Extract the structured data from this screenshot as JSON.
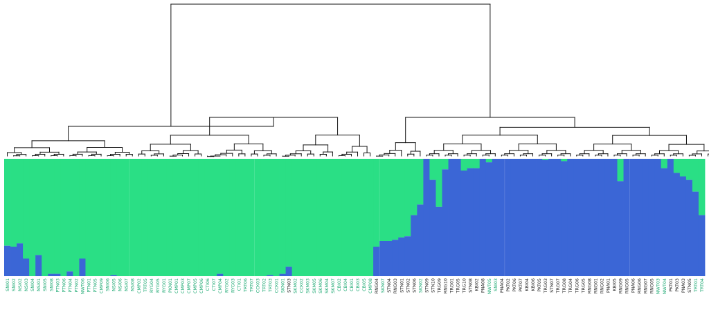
{
  "figure": {
    "colors": {
      "cluster_1": "#2adf85",
      "cluster_2": "#3b66d6",
      "tree": "#111111",
      "label_green": "#1aa870",
      "label_dark": "#222222",
      "divider": "#ffffff"
    },
    "panel_groups": [
      20,
      40,
      60,
      80,
      100,
      120
    ],
    "samples": [
      {
        "label": "SNI01",
        "color": "green",
        "blue": 0.26
      },
      {
        "label": "SNI02",
        "color": "green",
        "blue": 0.25
      },
      {
        "label": "NSI02",
        "color": "green",
        "blue": 0.28
      },
      {
        "label": "NSI03",
        "color": "green",
        "blue": 0.15
      },
      {
        "label": "SNI04",
        "color": "green",
        "blue": 0.0
      },
      {
        "label": "NSI01",
        "color": "green",
        "blue": 0.18
      },
      {
        "label": "SNI05",
        "color": "green",
        "blue": 0.0
      },
      {
        "label": "SNI08",
        "color": "green",
        "blue": 0.02
      },
      {
        "label": "PTN03",
        "color": "green",
        "blue": 0.02
      },
      {
        "label": "PTN06",
        "color": "green",
        "blue": 0.0
      },
      {
        "label": "PTN04",
        "color": "green",
        "blue": 0.04
      },
      {
        "label": "PTN02",
        "color": "green",
        "blue": 0.0
      },
      {
        "label": "NWT06",
        "color": "green",
        "blue": 0.15
      },
      {
        "label": "PTN01",
        "color": "green",
        "blue": 0.0
      },
      {
        "label": "PTN05",
        "color": "green",
        "blue": 0.0
      },
      {
        "label": "CMP09",
        "color": "green",
        "blue": 0.0
      },
      {
        "label": "SNI06",
        "color": "green",
        "blue": 0.0
      },
      {
        "label": "NSI05",
        "color": "green",
        "blue": 0.01
      },
      {
        "label": "NSI06",
        "color": "green",
        "blue": 0.0
      },
      {
        "label": "NSI07",
        "color": "green",
        "blue": 0.0
      },
      {
        "label": "NSI08",
        "color": "green",
        "blue": 0.0
      },
      {
        "label": "CMP02",
        "color": "green",
        "blue": 0.0
      },
      {
        "label": "TRT05",
        "color": "green",
        "blue": 0.0
      },
      {
        "label": "RYG04",
        "color": "green",
        "blue": 0.0
      },
      {
        "label": "RYG05",
        "color": "green",
        "blue": 0.0
      },
      {
        "label": "RYG01",
        "color": "green",
        "blue": 0.0
      },
      {
        "label": "PKN01",
        "color": "green",
        "blue": 0.0
      },
      {
        "label": "CMP01",
        "color": "green",
        "blue": 0.0
      },
      {
        "label": "CMP03",
        "color": "green",
        "blue": 0.0
      },
      {
        "label": "CMP07",
        "color": "green",
        "blue": 0.0
      },
      {
        "label": "CMP05",
        "color": "green",
        "blue": 0.0
      },
      {
        "label": "CMP06",
        "color": "green",
        "blue": 0.0
      },
      {
        "label": "CTI06",
        "color": "green",
        "blue": 0.0
      },
      {
        "label": "CTI07",
        "color": "green",
        "blue": 0.0
      },
      {
        "label": "CMP04",
        "color": "green",
        "blue": 0.02
      },
      {
        "label": "RYG02",
        "color": "green",
        "blue": 0.0
      },
      {
        "label": "RYG03",
        "color": "green",
        "blue": 0.0
      },
      {
        "label": "CTI01",
        "color": "green",
        "blue": 0.0
      },
      {
        "label": "TRT06",
        "color": "green",
        "blue": 0.0
      },
      {
        "label": "TRT07",
        "color": "green",
        "blue": 0.0
      },
      {
        "label": "CCK03",
        "color": "green",
        "blue": 0.0
      },
      {
        "label": "TRT02",
        "color": "green",
        "blue": 0.0
      },
      {
        "label": "TRT03",
        "color": "green",
        "blue": 0.01
      },
      {
        "label": "CCK01",
        "color": "green",
        "blue": 0.0
      },
      {
        "label": "SKN01",
        "color": "green",
        "blue": 0.02
      },
      {
        "label": "STN03",
        "color": "dark",
        "blue": 0.08
      },
      {
        "label": "SKM02",
        "color": "green",
        "blue": 0.0
      },
      {
        "label": "CCK02",
        "color": "green",
        "blue": 0.0
      },
      {
        "label": "SKM03",
        "color": "green",
        "blue": 0.0
      },
      {
        "label": "SKM05",
        "color": "green",
        "blue": 0.0
      },
      {
        "label": "SKM06",
        "color": "green",
        "blue": 0.0
      },
      {
        "label": "SKM04",
        "color": "green",
        "blue": 0.0
      },
      {
        "label": "SKM07",
        "color": "green",
        "blue": 0.0
      },
      {
        "label": "CBI02",
        "color": "green",
        "blue": 0.0
      },
      {
        "label": "CBI04",
        "color": "green",
        "blue": 0.0
      },
      {
        "label": "CBI01",
        "color": "green",
        "blue": 0.0
      },
      {
        "label": "CBI03",
        "color": "green",
        "blue": 0.0
      },
      {
        "label": "CBI05",
        "color": "green",
        "blue": 0.0
      },
      {
        "label": "CMP08",
        "color": "green",
        "blue": 0.0
      },
      {
        "label": "RNG04",
        "color": "dark",
        "blue": 0.25
      },
      {
        "label": "SKN07",
        "color": "green",
        "blue": 0.3
      },
      {
        "label": "STN04",
        "color": "dark",
        "blue": 0.3
      },
      {
        "label": "RNG03",
        "color": "dark",
        "blue": 0.31
      },
      {
        "label": "STN01",
        "color": "dark",
        "blue": 0.33
      },
      {
        "label": "STN02",
        "color": "dark",
        "blue": 0.34
      },
      {
        "label": "STN06",
        "color": "dark",
        "blue": 0.52
      },
      {
        "label": "SKN02",
        "color": "green",
        "blue": 0.61
      },
      {
        "label": "STN09",
        "color": "dark",
        "blue": 1.0
      },
      {
        "label": "STN10",
        "color": "dark",
        "blue": 0.82
      },
      {
        "label": "TRG09",
        "color": "dark",
        "blue": 0.59
      },
      {
        "label": "RNG10",
        "color": "dark",
        "blue": 0.91
      },
      {
        "label": "TRG01",
        "color": "dark",
        "blue": 1.0
      },
      {
        "label": "TRG05",
        "color": "dark",
        "blue": 1.0
      },
      {
        "label": "TRG10",
        "color": "dark",
        "blue": 0.9
      },
      {
        "label": "STN08",
        "color": "dark",
        "blue": 0.92
      },
      {
        "label": "KBI02",
        "color": "dark",
        "blue": 0.92
      },
      {
        "label": "PNA08",
        "color": "dark",
        "blue": 1.0
      },
      {
        "label": "NWT05",
        "color": "green",
        "blue": 0.97
      },
      {
        "label": "SNI03",
        "color": "green",
        "blue": 1.0
      },
      {
        "label": "PNA04",
        "color": "dark",
        "blue": 1.0
      },
      {
        "label": "PKT02",
        "color": "dark",
        "blue": 1.0
      },
      {
        "label": "PKT06",
        "color": "dark",
        "blue": 1.0
      },
      {
        "label": "PKT07",
        "color": "dark",
        "blue": 1.0
      },
      {
        "label": "KBI04",
        "color": "dark",
        "blue": 1.0
      },
      {
        "label": "KBI06",
        "color": "dark",
        "blue": 1.0
      },
      {
        "label": "PKT05",
        "color": "dark",
        "blue": 1.0
      },
      {
        "label": "TRG03",
        "color": "dark",
        "blue": 0.99
      },
      {
        "label": "STN07",
        "color": "dark",
        "blue": 1.0
      },
      {
        "label": "TRG07",
        "color": "dark",
        "blue": 1.0
      },
      {
        "label": "TRG08",
        "color": "dark",
        "blue": 0.98
      },
      {
        "label": "TRG04",
        "color": "dark",
        "blue": 1.0
      },
      {
        "label": "TRG06",
        "color": "dark",
        "blue": 1.0
      },
      {
        "label": "TRG05",
        "color": "dark",
        "blue": 1.0
      },
      {
        "label": "RNG08",
        "color": "dark",
        "blue": 1.0
      },
      {
        "label": "RNG01",
        "color": "dark",
        "blue": 1.0
      },
      {
        "label": "RNG02",
        "color": "dark",
        "blue": 1.0
      },
      {
        "label": "PNA01",
        "color": "dark",
        "blue": 1.0
      },
      {
        "label": "KBI05",
        "color": "dark",
        "blue": 1.0
      },
      {
        "label": "RNG09",
        "color": "dark",
        "blue": 0.81
      },
      {
        "label": "RNG05",
        "color": "dark",
        "blue": 1.0
      },
      {
        "label": "PNA06",
        "color": "dark",
        "blue": 1.0
      },
      {
        "label": "RNG06",
        "color": "dark",
        "blue": 1.0
      },
      {
        "label": "RNG07",
        "color": "dark",
        "blue": 1.0
      },
      {
        "label": "RNG05",
        "color": "dark",
        "blue": 1.0
      },
      {
        "label": "NWT03",
        "color": "green",
        "blue": 1.0
      },
      {
        "label": "NWT04",
        "color": "green",
        "blue": 0.92
      },
      {
        "label": "PKT01",
        "color": "dark",
        "blue": 1.0
      },
      {
        "label": "PKT03",
        "color": "dark",
        "blue": 0.88
      },
      {
        "label": "PNA03",
        "color": "dark",
        "blue": 0.85
      },
      {
        "label": "STN05",
        "color": "dark",
        "blue": 0.82
      },
      {
        "label": "TRT01",
        "color": "green",
        "blue": 0.72
      },
      {
        "label": "TRT04",
        "color": "green",
        "blue": 0.52
      }
    ]
  }
}
